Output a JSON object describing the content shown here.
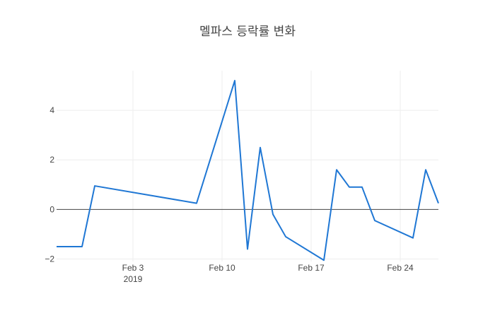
{
  "chart_data": {
    "type": "line",
    "title": "멜파스 등락률 변화",
    "xlabel": "",
    "ylabel": "",
    "x": [
      "2019-01-28",
      "2019-01-29",
      "2019-01-30",
      "2019-01-31",
      "2019-02-08",
      "2019-02-11",
      "2019-02-12",
      "2019-02-13",
      "2019-02-14",
      "2019-02-15",
      "2019-02-18",
      "2019-02-19",
      "2019-02-20",
      "2019-02-21",
      "2019-02-22",
      "2019-02-25",
      "2019-02-26",
      "2019-02-27"
    ],
    "series": [
      {
        "values": [
          -1.5,
          -1.5,
          -1.5,
          0.95,
          0.25,
          5.2,
          -1.6,
          2.5,
          -0.2,
          -1.1,
          -2.05,
          1.6,
          0.9,
          0.9,
          -0.45,
          -1.15,
          1.6,
          0.25
        ],
        "color": "#1f77d4"
      }
    ],
    "xlim": [
      "2019-01-28",
      "2019-02-27"
    ],
    "ylim": [
      -2.1,
      5.6
    ],
    "x_ticks": [
      {
        "date": "2019-02-03",
        "label": "Feb 3",
        "sublabel": "2019"
      },
      {
        "date": "2019-02-10",
        "label": "Feb 10",
        "sublabel": ""
      },
      {
        "date": "2019-02-17",
        "label": "Feb 17",
        "sublabel": ""
      },
      {
        "date": "2019-02-24",
        "label": "Feb 24",
        "sublabel": ""
      }
    ],
    "y_ticks": [
      {
        "value": -2,
        "label": "−2"
      },
      {
        "value": 0,
        "label": "0"
      },
      {
        "value": 2,
        "label": "2"
      },
      {
        "value": 4,
        "label": "4"
      }
    ],
    "grid": true,
    "zero_line": true,
    "legend": "none"
  }
}
